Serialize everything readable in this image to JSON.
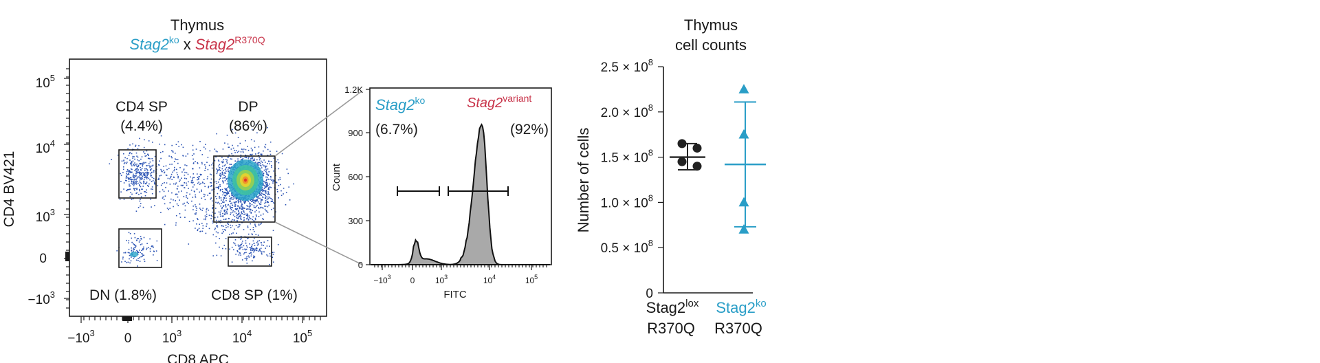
{
  "flow_panel": {
    "title": "Thymus",
    "genotype": {
      "ko_base": "Stag2",
      "ko_sup": "ko",
      "sep": "x",
      "var_base": "Stag2",
      "var_sup": "R370Q"
    },
    "y_label": "CD4 BV421",
    "x_label": "CD8 APC",
    "gates": [
      {
        "name": "CD4 SP",
        "pct": "(4.4%)"
      },
      {
        "name": "DP",
        "pct": "(86%)"
      },
      {
        "name": "DN (1.8%)"
      },
      {
        "name": "CD8 SP (1%)"
      }
    ]
  },
  "colors": {
    "ko": "#2a9ec7",
    "variant": "#c8344a",
    "histogram_fill": "#a9a9a9",
    "dot_blue": "#2d55b5"
  },
  "chart_data": [
    {
      "type": "scatter",
      "title": "Thymus",
      "xlabel": "CD8 APC",
      "ylabel": "CD4 BV421",
      "scale": "biexponential",
      "x_ticks": [
        "−10^3",
        "0",
        "10^3",
        "10^4",
        "10^5"
      ],
      "y_ticks": [
        "10^5",
        "10^4",
        "10^3",
        "0",
        "−10^3"
      ],
      "gates": [
        {
          "label": "CD4 SP",
          "percent": 4.4
        },
        {
          "label": "DP",
          "percent": 86
        },
        {
          "label": "DN",
          "percent": 1.8
        },
        {
          "label": "CD8 SP",
          "percent": 1
        }
      ]
    },
    {
      "type": "area",
      "xlabel": "FITC",
      "ylabel": "Count",
      "ylim": [
        0,
        1200
      ],
      "y_ticks": [
        "1.2K",
        "900",
        "600",
        "300",
        "0"
      ],
      "x_ticks": [
        "−10^3",
        "0",
        "10^3",
        "10^4",
        "10^5"
      ],
      "gates": [
        {
          "label": "Stag2ko",
          "label_base": "Stag2",
          "label_sup": "ko",
          "percent": 6.7,
          "pct_text": "(6.7%)"
        },
        {
          "label": "Stag2variant",
          "label_base": "Stag2",
          "label_sup": "variant",
          "percent": 92,
          "pct_text": "(92%)"
        }
      ],
      "peaks": [
        {
          "x": "0",
          "count": 150
        },
        {
          "x": "≈6×10^3",
          "count": 960
        }
      ]
    },
    {
      "type": "scatter",
      "title": "Thymus\ncell counts",
      "title_lines": [
        "Thymus",
        "cell counts"
      ],
      "ylabel": "Number of cells",
      "ylim": [
        0,
        250000000
      ],
      "y_ticks": [
        {
          "mant": "0",
          "exp": ""
        },
        {
          "mant": "0.5 × 10",
          "exp": "8"
        },
        {
          "mant": "1.0 × 10",
          "exp": "8"
        },
        {
          "mant": "1.5 × 10",
          "exp": "8"
        },
        {
          "mant": "2.0 × 10",
          "exp": "8"
        },
        {
          "mant": "2.5 × 10",
          "exp": "8"
        }
      ],
      "categories": [
        {
          "line1_base": "Stag2",
          "line1_sup": "lox",
          "line2": "R370Q"
        },
        {
          "line1_base": "Stag2",
          "line1_sup": "ko",
          "line2": "R370Q"
        }
      ],
      "series": [
        {
          "marker": "circle",
          "color": "#222222",
          "values": [
            165000000,
            160000000,
            145000000,
            140000000
          ],
          "mean": 150000000,
          "sd_low": 136000000,
          "sd_high": 165000000
        },
        {
          "marker": "triangle",
          "color": "#2a9ec7",
          "values": [
            225000000,
            175000000,
            100000000,
            70000000
          ],
          "mean": 142000000,
          "sd_low": 73000000,
          "sd_high": 211000000
        }
      ]
    }
  ]
}
